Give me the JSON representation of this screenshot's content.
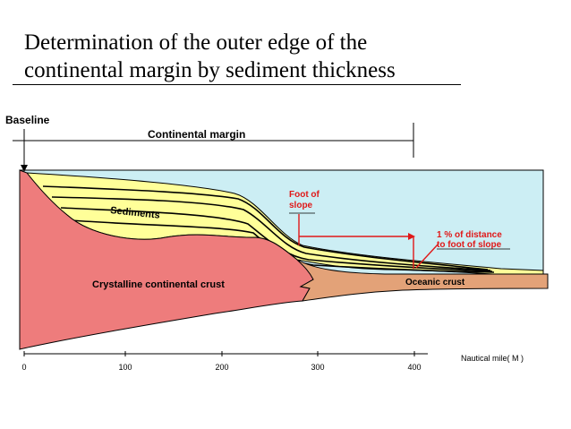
{
  "title": {
    "line1": "Determination of the outer edge of the",
    "line2": "continental margin by sediment thickness"
  },
  "labels": {
    "baseline": "Baseline",
    "continental_margin": "Continental margin",
    "foot_of_slope_1": "Foot of",
    "foot_of_slope_2": "slope",
    "sediments": "Sediments",
    "one_percent_1": "1 % of distance",
    "one_percent_2": "to foot of slope",
    "crystalline_crust": "Crystalline continental crust",
    "oceanic_crust": "Oceanic crust",
    "axis_label": "Nautical mile( M )"
  },
  "axis": {
    "ticks": [
      "0",
      "100",
      "200",
      "300",
      "400"
    ]
  },
  "colors": {
    "ocean": "#cceef4",
    "sediment": "#ffff99",
    "continental_crust": "#ee7c7c",
    "oceanic_crust": "#e3a278",
    "accent_red": "#e01818"
  }
}
